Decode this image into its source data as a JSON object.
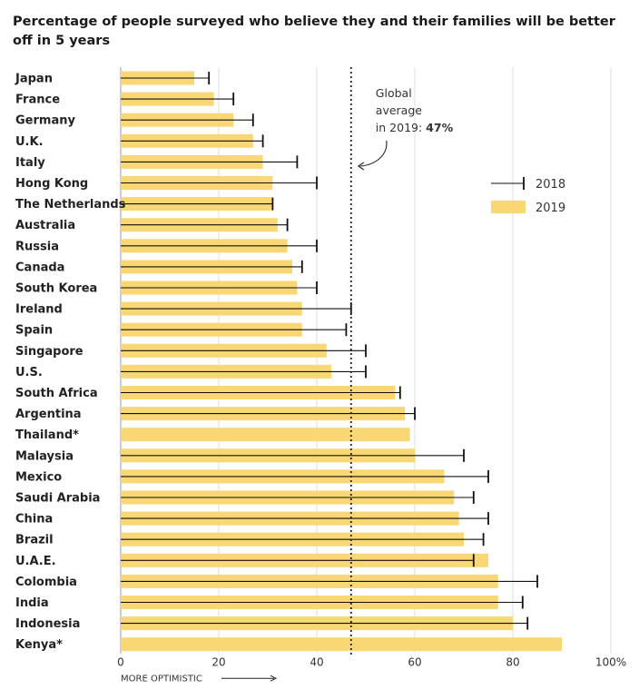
{
  "title": "Percentage of people surveyed who believe they and their families will be better off in 5 years",
  "chart_data": {
    "type": "bar",
    "orientation": "horizontal",
    "title": "Percentage of people surveyed who believe they and their families will be better off in 5 years",
    "categories": [
      "Japan",
      "France",
      "Germany",
      "U.K.",
      "Italy",
      "Hong Kong",
      "The Netherlands",
      "Australia",
      "Russia",
      "Canada",
      "South Korea",
      "Ireland",
      "Spain",
      "Singapore",
      "U.S.",
      "South Africa",
      "Argentina",
      "Thailand*",
      "Malaysia",
      "Mexico",
      "Saudi Arabia",
      "China",
      "Brazil",
      "U.A.E.",
      "Colombia",
      "India",
      "Indonesia",
      "Kenya*"
    ],
    "series": [
      {
        "name": "2019",
        "type": "bar",
        "values": [
          15,
          19,
          23,
          27,
          29,
          31,
          31,
          32,
          34,
          35,
          36,
          37,
          37,
          42,
          43,
          56,
          58,
          59,
          60,
          66,
          68,
          69,
          70,
          75,
          77,
          77,
          80,
          90
        ]
      },
      {
        "name": "2018",
        "type": "marker",
        "values": [
          18,
          23,
          27,
          29,
          36,
          40,
          31,
          34,
          40,
          37,
          40,
          47,
          46,
          50,
          50,
          57,
          60,
          null,
          70,
          75,
          72,
          75,
          74,
          72,
          85,
          82,
          83,
          null
        ]
      }
    ],
    "xlim": [
      0,
      100
    ],
    "x_ticks": [
      "0",
      "20",
      "40",
      "60",
      "80",
      "100%"
    ],
    "xlabel": "MORE OPTIMISTIC",
    "reference_line": {
      "value": 47,
      "text_lines": [
        "Global",
        "average",
        "in 2019: "
      ],
      "text_bold": "47%"
    },
    "legend": {
      "position": "right",
      "entries": [
        "2018",
        "2019"
      ]
    },
    "grid": true
  },
  "colors": {
    "bar": "#f8d774",
    "marker": "#111111",
    "grid": "#dddddd",
    "reference": "#222222"
  }
}
